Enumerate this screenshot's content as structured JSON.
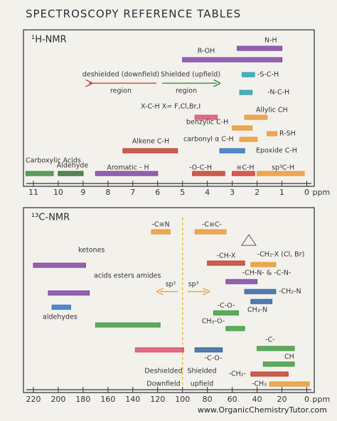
{
  "title": "SPECTROSCOPY REFERENCE TABLES",
  "footer": "www.OrganicChemistryTutor.com",
  "chart_data": [
    {
      "type": "range",
      "title": "¹H-NMR",
      "x_label": "ppm",
      "xlim": [
        11.4,
        -0.3
      ],
      "xticks": [
        11,
        10,
        9,
        8,
        7,
        6,
        5,
        4,
        3,
        2,
        1,
        0
      ],
      "annotations": [
        "deshielded (downfield)",
        "region",
        "Shielded (upfield)",
        "region"
      ],
      "series": [
        {
          "name": "Carboxylic Acids",
          "color": "#3a8a3a",
          "values": [
            11.3,
            10.2
          ]
        },
        {
          "name": "Aldehyde",
          "color": "#2f6b2f",
          "values": [
            10,
            9
          ]
        },
        {
          "name": "Aromatic - H",
          "color": "#7a3fa0",
          "values": [
            8.5,
            6
          ]
        },
        {
          "name": "Alkene C-H",
          "color": "#c0392b",
          "values": [
            7.4,
            5.2
          ]
        },
        {
          "name": "-O-C-H",
          "color": "#c0392b",
          "values": [
            4.6,
            3.3
          ]
        },
        {
          "name": "≡C-H",
          "color": "#d0342c",
          "values": [
            3,
            2.1
          ]
        },
        {
          "name": "sp³C-H",
          "color": "#e8962e",
          "values": [
            2,
            0.1
          ]
        },
        {
          "name": "R-OH",
          "color": "#7a3fa0",
          "values": [
            5,
            1
          ]
        },
        {
          "name": "N-H",
          "color": "#7a3fa0",
          "values": [
            2.8,
            1
          ]
        },
        {
          "name": "-S-C-H",
          "color": "#1f9fae",
          "values": [
            2.6,
            2.1
          ]
        },
        {
          "name": "-N-C-H",
          "color": "#1f9fae",
          "values": [
            2.7,
            2.2
          ]
        },
        {
          "name": "X-C-H  X= F,Cl,Br,I",
          "color": "#d94b6a",
          "values": [
            4.5,
            3.6
          ]
        },
        {
          "name": "Allylic CH",
          "color": "#e8962e",
          "values": [
            2.5,
            1.6
          ]
        },
        {
          "name": "benzylic C-H",
          "color": "#e8962e",
          "values": [
            3,
            2.2
          ]
        },
        {
          "name": "carbonyl α C-H",
          "color": "#e8962e",
          "values": [
            2.7,
            2
          ]
        },
        {
          "name": "R-SH",
          "color": "#e8962e",
          "values": [
            1.6,
            1.2
          ]
        },
        {
          "name": "Epoxide C-H",
          "color": "#2a6fc0",
          "values": [
            3.5,
            2.5
          ]
        }
      ]
    },
    {
      "type": "range",
      "title": "¹³C-NMR",
      "x_label": "ppm",
      "xlim": [
        228,
        -6
      ],
      "xticks": [
        220,
        200,
        180,
        160,
        140,
        120,
        100,
        80,
        60,
        40,
        20,
        0
      ],
      "divider": 100,
      "annotations": [
        "sp²",
        "sp³",
        "Deshielded",
        "Downfield",
        "Shielded",
        "upfield"
      ],
      "series": [
        {
          "name": "ketones",
          "color": "#7a3fa0",
          "values": [
            220,
            178
          ]
        },
        {
          "name": "acids esters amides",
          "color": "#7a3fa0",
          "values": [
            208,
            175
          ]
        },
        {
          "name": "aldehydes",
          "color": "#2a6fc0",
          "values": [
            205,
            190
          ]
        },
        {
          "color": "#3a9a3a",
          "values": [
            170,
            118
          ]
        },
        {
          "color": "#d94b6a",
          "values": [
            138,
            99
          ]
        },
        {
          "name": "-C≡N",
          "color": "#e8962e",
          "values": [
            125,
            110
          ]
        },
        {
          "name": "-C≡C-",
          "color": "#e8962e",
          "values": [
            90,
            65
          ]
        },
        {
          "name": "-CH-X",
          "color": "#c0392b",
          "values": [
            80,
            50
          ]
        },
        {
          "name": "-CH₂-X (Cl, Br)",
          "color": "#e8962e",
          "values": [
            45,
            25
          ]
        },
        {
          "name": "-CH-N- & -C-N-",
          "color": "#7a3fa0",
          "values": [
            65,
            40
          ]
        },
        {
          "name": "-CH₂-N",
          "color": "#2a5fa0",
          "values": [
            50,
            25
          ]
        },
        {
          "name": "CH₃-N",
          "color": "#2a5fa0",
          "values": [
            45,
            28
          ]
        },
        {
          "name": "-C-O-",
          "color": "#3a9a3a",
          "values": [
            75,
            55
          ]
        },
        {
          "name": "CH₃-O-",
          "color": "#3a9a3a",
          "values": [
            65,
            50
          ]
        },
        {
          "name": "-C-O-",
          "color": "#2a5fa0",
          "values": [
            90,
            68
          ]
        },
        {
          "name": "-C-",
          "color": "#3a9a3a",
          "values": [
            40,
            10
          ]
        },
        {
          "name": "CH",
          "color": "#3a9a3a",
          "values": [
            35,
            10
          ]
        },
        {
          "name": "-CH₂-",
          "color": "#c0392b",
          "values": [
            45,
            15
          ]
        },
        {
          "name": "-CH₃",
          "color": "#e8962e",
          "values": [
            30,
            -2
          ]
        }
      ]
    }
  ]
}
